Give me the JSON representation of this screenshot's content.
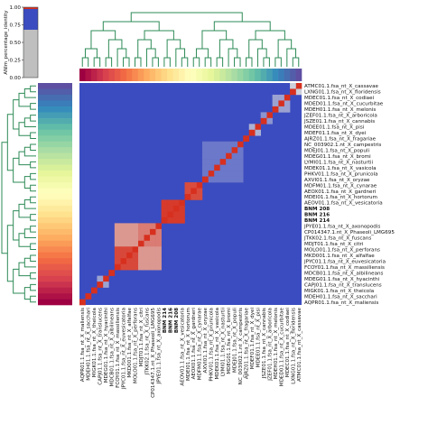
{
  "chart_data": {
    "type": "heatmap",
    "title": "",
    "colormap": "Spectral_r",
    "colors": {
      "matrix_background": "#3b4cc0",
      "diagonal": "#d7301f",
      "dendrogram": "#2e8b57"
    },
    "side_bar": {
      "ylabel": "ANIm_percentage_identity",
      "ticks": [
        "0.00",
        "0.25",
        "0.50",
        "0.75",
        "1.00"
      ],
      "ylim": [
        0,
        1
      ],
      "fill_value": 0.68
    },
    "row_labels": [
      "ATMC01.1.fsa_nt_X_cassavae",
      "LXNG01.1.fsa_nt_X_floridensis",
      "MDEC01.1.fsa_nt_X_codiaei",
      "MDED01.1.fsa_nt_X_cucurbitae",
      "MDEH01.1.fsa_nt_X_melonis",
      "JZEF01.1.fsa_nt_X_arboricola",
      "JSZE01.1.fsa_nt_X_cannabis",
      "MDEE01.1.fsa_nt_X_pisi",
      "MDEF01.1.fsa_nt_X_dyei",
      "AJRZ01.1.fsa_nt_X_fragariae",
      "NC_003902.1.nt_X_campestris",
      "MDEJ01.1.fsa_nt_X_populi",
      "MDEG01.1.fsa_nt_X_bromi",
      "LYMI01.1.fsa_nt_X_nasturtii",
      "MDEK01.1.fsa_nt_X_vasicola",
      "PHKV01.1.fsa_nt_X_prunicola",
      "AXVI01.1.fsa_nt_X_oryzae",
      "MDFM01.1.fsa_nt_X_cynarae",
      "AEOX01.1.fsa_nt_X_gardneri",
      "MDEI01.1.fsa_nt_X_hortorum",
      "AEOV01.1.fsa_nt_X_vesicatoria",
      "BNM 208",
      "BNM 216",
      "BNM 214",
      "JPYE01.1.fsa_nt_X_axonopodis",
      "CP014347.1.nt_X_Phaseoli_LMG695",
      "JTKK02.1.fsa_nt_X_fuscans",
      "MDJT01.1.fsa_nt_X_citri",
      "MOLO01.1.fsa_nt_X_perforans",
      "MKD001.1.fsa_nt_X_alfalfae",
      "JPYC01.1.fsa_nt_X_euvesicatoria",
      "FCOY01.1.fsa_nt_X_massiliensis",
      "MDCB01.1.fsa_nt_X_albilineans",
      "MDEG01.1.fsa_nt_X_hyacinthi",
      "CAPJ01.1.fsa_nt_X_translucens",
      "MIGK01.1.fsa_nt_X_theicola",
      "MDEH01.1.fsa_nt_X_sacchari",
      "AQPR01.1.fsa_nt_X_maliensis"
    ],
    "bold_labels": [
      "BNM 208",
      "BNM 216",
      "BNM 214"
    ],
    "diagonal_value": 1.0,
    "background_value": 0.0,
    "blocks": [
      {
        "rows": [
          0,
          1
        ],
        "value": 0.45
      },
      {
        "rows": [
          2,
          4
        ],
        "value": 0.3
      },
      {
        "rows": [
          5,
          6
        ],
        "value": 0.25
      },
      {
        "rows": [
          7,
          8
        ],
        "value": 0.35
      },
      {
        "rows": [
          10,
          16
        ],
        "value": 0.15
      },
      {
        "rows": [
          17,
          19
        ],
        "value": 0.92
      },
      {
        "rows": [
          18,
          19
        ],
        "value": 0.85
      },
      {
        "rows": [
          20,
          23
        ],
        "value": 0.97
      },
      {
        "rows": [
          24,
          31
        ],
        "value": 0.7
      },
      {
        "rows": [
          24,
          27
        ],
        "value": 0.78
      },
      {
        "rows": [
          28,
          31
        ],
        "value": 0.93
      },
      {
        "rows": [
          33,
          34
        ],
        "value": 0.3
      }
    ]
  }
}
